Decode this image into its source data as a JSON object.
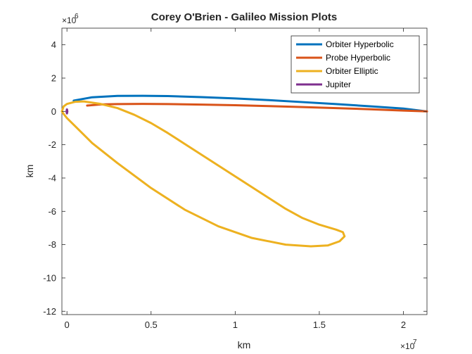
{
  "chart_data": {
    "type": "line",
    "title": "Corey O'Brien - Galileo Mission Plots",
    "xlabel": "km",
    "ylabel": "km",
    "x_exponent": {
      "base": "×10",
      "power": "7"
    },
    "y_exponent": {
      "base": "×10",
      "power": "6"
    },
    "xlim": [
      -0.03,
      2.14
    ],
    "ylim": [
      -12.2,
      5.0
    ],
    "x_ticks": [
      0,
      0.5,
      1,
      1.5,
      2
    ],
    "x_tick_labels": [
      "0",
      "0.5",
      "1",
      "1.5",
      "2"
    ],
    "y_ticks": [
      4,
      2,
      0,
      -2,
      -4,
      -6,
      -8,
      -10,
      -12
    ],
    "y_tick_labels": [
      "4",
      "2",
      "0",
      "-2",
      "-4",
      "-6",
      "-8",
      "-10",
      "-12"
    ],
    "grid": false,
    "legend_position": "top-right",
    "series": [
      {
        "name": "Orbiter Hyperbolic",
        "color": "#0072BD",
        "x": [
          0.04,
          0.15,
          0.3,
          0.45,
          0.6,
          0.8,
          1.0,
          1.2,
          1.4,
          1.6,
          1.8,
          2.0,
          2.14
        ],
        "y": [
          0.65,
          0.85,
          0.93,
          0.94,
          0.92,
          0.86,
          0.78,
          0.68,
          0.56,
          0.44,
          0.31,
          0.17,
          0.0
        ]
      },
      {
        "name": "Probe Hyperbolic",
        "color": "#D95319",
        "x": [
          0.12,
          0.2,
          0.3,
          0.45,
          0.6,
          0.8,
          1.0,
          1.2,
          1.4,
          1.6,
          1.8,
          2.0,
          2.14
        ],
        "y": [
          0.35,
          0.42,
          0.44,
          0.45,
          0.44,
          0.41,
          0.37,
          0.32,
          0.26,
          0.2,
          0.13,
          0.05,
          0.0
        ]
      },
      {
        "name": "Orbiter Elliptic",
        "color": "#EDB120",
        "x": [
          -0.03,
          -0.02,
          0.0,
          0.05,
          0.1,
          0.2,
          0.3,
          0.4,
          0.5,
          0.6,
          0.7,
          0.8,
          0.9,
          1.0,
          1.1,
          1.2,
          1.3,
          1.4,
          1.5,
          1.6,
          1.64,
          1.65,
          1.62,
          1.55,
          1.45,
          1.3,
          1.1,
          0.9,
          0.7,
          0.5,
          0.3,
          0.15,
          0.05,
          0.0,
          -0.02,
          -0.03
        ],
        "y": [
          0.0,
          0.3,
          0.45,
          0.58,
          0.6,
          0.45,
          0.2,
          -0.2,
          -0.7,
          -1.3,
          -1.95,
          -2.6,
          -3.25,
          -3.9,
          -4.55,
          -5.2,
          -5.85,
          -6.4,
          -6.8,
          -7.1,
          -7.25,
          -7.5,
          -7.8,
          -8.05,
          -8.1,
          -8.0,
          -7.6,
          -6.9,
          -5.9,
          -4.6,
          -3.1,
          -1.9,
          -0.9,
          -0.4,
          -0.15,
          0.0
        ]
      },
      {
        "name": "Jupiter",
        "color": "#7E2F8E",
        "x": [
          0.0,
          0.0025,
          0.0,
          -0.0025,
          0.0
        ],
        "y": [
          0.12,
          0.0,
          -0.12,
          0.0,
          0.12
        ]
      }
    ]
  }
}
